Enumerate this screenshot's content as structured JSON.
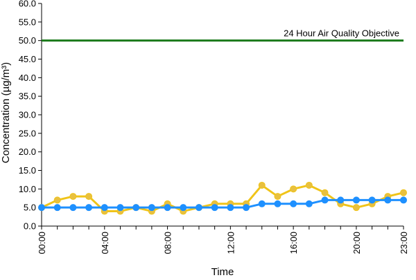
{
  "chart_data": {
    "type": "line",
    "xlabel": "Time",
    "ylabel": "Concentration (µg/m³)",
    "ylim": [
      0,
      60
    ],
    "yticks": [
      "0.0",
      "5.0",
      "10.0",
      "15.0",
      "20.0",
      "25.0",
      "30.0",
      "35.0",
      "40.0",
      "45.0",
      "50.0",
      "55.0",
      "60.0"
    ],
    "x": [
      0,
      1,
      2,
      3,
      4,
      5,
      6,
      7,
      8,
      9,
      10,
      11,
      12,
      13,
      14,
      15,
      16,
      17,
      18,
      19,
      20,
      21,
      22,
      23
    ],
    "xticks": [
      {
        "hour": 0,
        "label": "00:00"
      },
      {
        "hour": 4,
        "label": "04:00"
      },
      {
        "hour": 8,
        "label": "08:00"
      },
      {
        "hour": 12,
        "label": "12:00"
      },
      {
        "hour": 16,
        "label": "16:00"
      },
      {
        "hour": 20,
        "label": "20:00"
      },
      {
        "hour": 23,
        "label": "23:00"
      }
    ],
    "series": [
      {
        "color": "#f0c419",
        "marker_color": "#e8c040",
        "values": [
          5,
          7,
          8,
          8,
          4,
          4,
          5,
          4,
          6,
          4,
          5,
          6,
          6,
          6,
          11,
          8,
          10,
          11,
          9,
          6,
          5,
          6,
          8,
          9
        ]
      },
      {
        "color": "#1e90ff",
        "marker_color": "#1e90ff",
        "values": [
          5,
          5,
          5,
          5,
          5,
          5,
          5,
          5,
          5,
          5,
          5,
          5,
          5,
          5,
          6,
          6,
          6,
          6,
          7,
          7,
          7,
          7,
          7,
          7
        ]
      }
    ],
    "objective": {
      "value": 50,
      "label": "24 Hour Air Quality Objective",
      "color": "#1a7a1a"
    },
    "grid": false
  }
}
